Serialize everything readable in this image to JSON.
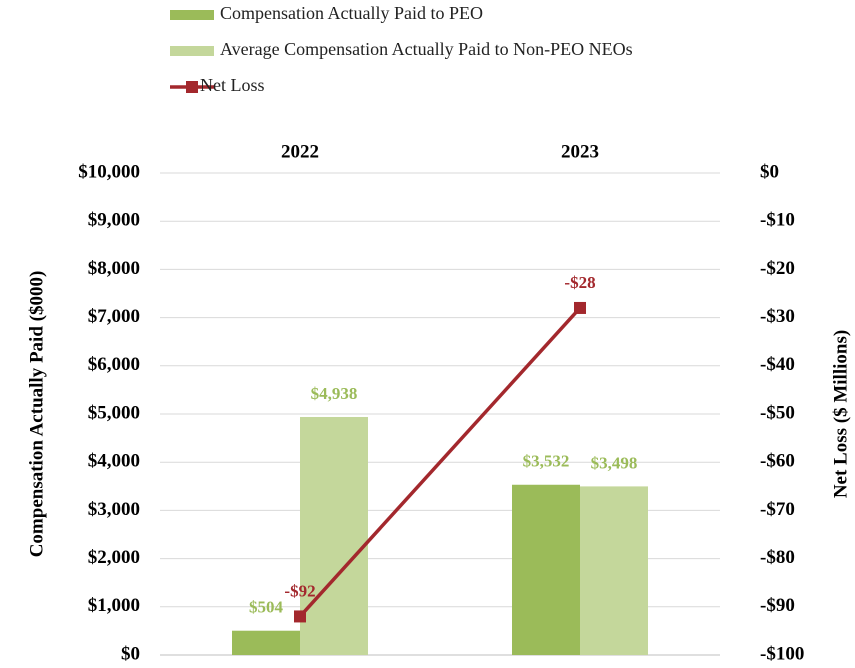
{
  "chart_data": {
    "type": "bar",
    "categories": [
      "2022",
      "2023"
    ],
    "y_label": "Compensation Actually Paid ($000)",
    "y2_label": "Net Loss ($ Millions)",
    "ylim": [
      0,
      10000
    ],
    "yticks": [
      {
        "value": 0,
        "label": "$0"
      },
      {
        "value": 1000,
        "label": "$1,000"
      },
      {
        "value": 2000,
        "label": "$2,000"
      },
      {
        "value": 3000,
        "label": "$3,000"
      },
      {
        "value": 4000,
        "label": "$4,000"
      },
      {
        "value": 5000,
        "label": "$5,000"
      },
      {
        "value": 6000,
        "label": "$6,000"
      },
      {
        "value": 7000,
        "label": "$7,000"
      },
      {
        "value": 8000,
        "label": "$8,000"
      },
      {
        "value": 9000,
        "label": "$9,000"
      },
      {
        "value": 10000,
        "label": "$10,000"
      }
    ],
    "y2lim": [
      -100,
      0
    ],
    "y2ticks": [
      {
        "value": -100,
        "label": "-$100"
      },
      {
        "value": -90,
        "label": "-$90"
      },
      {
        "value": -80,
        "label": "-$80"
      },
      {
        "value": -70,
        "label": "-$70"
      },
      {
        "value": -60,
        "label": "-$60"
      },
      {
        "value": -50,
        "label": "-$50"
      },
      {
        "value": -40,
        "label": "-$40"
      },
      {
        "value": -30,
        "label": "-$30"
      },
      {
        "value": -20,
        "label": "-$20"
      },
      {
        "value": -10,
        "label": "-$10"
      },
      {
        "value": 0,
        "label": "$0"
      }
    ],
    "grid": true,
    "legend": "top-left",
    "series": [
      {
        "name": "Compensation Actually Paid to PEO",
        "type": "bar",
        "color": "#9bbb59",
        "values": [
          504,
          3532
        ],
        "value_labels": [
          "$504",
          "$3,532"
        ]
      },
      {
        "name": "Average Compensation Actually Paid to Non-PEO NEOs",
        "type": "bar",
        "color": "#c4d79b",
        "values": [
          4938,
          3498
        ],
        "value_labels": [
          "$4,938",
          "$3,498"
        ]
      },
      {
        "name": "Net Loss",
        "type": "line",
        "axis": "y2",
        "color": "#a3282d",
        "values": [
          -92,
          -28
        ],
        "value_labels": [
          "-$92",
          "-$28"
        ]
      }
    ]
  }
}
